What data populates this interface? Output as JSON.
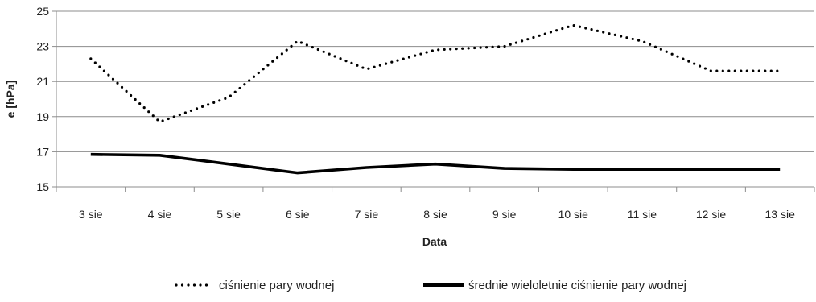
{
  "chart_data": {
    "type": "line",
    "title": "",
    "xlabel": "Data",
    "ylabel": "e [hPa]",
    "categories": [
      "3 sie",
      "4 sie",
      "5 sie",
      "6 sie",
      "7 sie",
      "8 sie",
      "9 sie",
      "10 sie",
      "11 sie",
      "12 sie",
      "13 sie"
    ],
    "ylim": [
      15,
      25
    ],
    "yticks": [
      15,
      17,
      19,
      21,
      23,
      25
    ],
    "grid": "horizontal",
    "legend_position": "bottom",
    "series": [
      {
        "name": "ciśnienie pary wodnej",
        "style": "dotted",
        "color": "#000000",
        "values": [
          22.3,
          18.7,
          20.1,
          23.3,
          21.7,
          22.8,
          23.0,
          24.2,
          23.3,
          21.6,
          21.6
        ]
      },
      {
        "name": "średnie wieloletnie ciśnienie pary wodnej",
        "style": "solid",
        "color": "#000000",
        "values": [
          16.85,
          16.8,
          16.3,
          15.8,
          16.1,
          16.3,
          16.05,
          16.0,
          16.0,
          16.0,
          16.0
        ]
      }
    ]
  }
}
